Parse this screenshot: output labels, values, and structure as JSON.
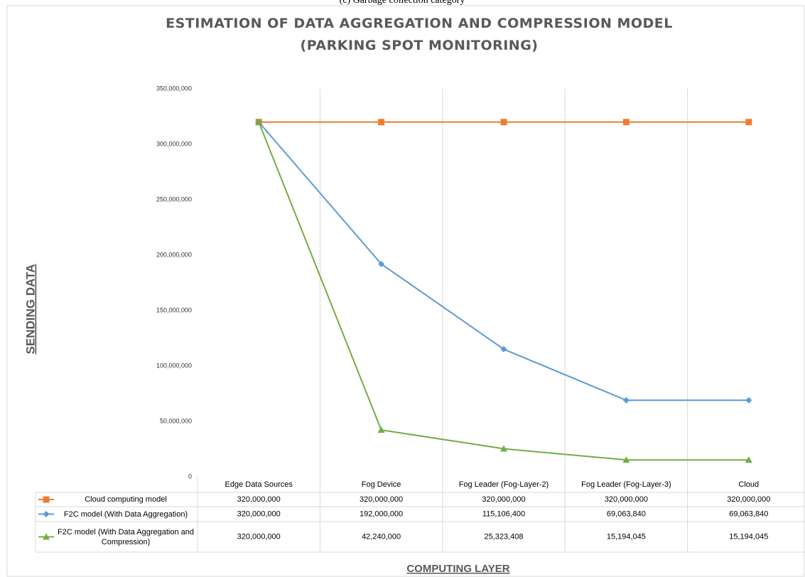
{
  "caption": "(c) Garbage collection category",
  "chart_data": {
    "type": "line",
    "title": "ESTIMATION OF DATA AGGREGATION AND COMPRESSION MODEL (PARKING SPOT MONITORING)",
    "x_label": "COMPUTING LAYER",
    "y_label": "SENDING DATA",
    "categories": [
      "Edge Data Sources",
      "Fog Device",
      "Fog Leader (Fog-Layer-2)",
      "Fog Leader (Fog-Layer-3)",
      "Cloud"
    ],
    "series": [
      {
        "name": "Cloud computing model",
        "color": "#ed7d31",
        "marker": "square",
        "values": [
          320000000,
          320000000,
          320000000,
          320000000,
          320000000
        ],
        "value_labels": [
          "320,000,000",
          "320,000,000",
          "320,000,000",
          "320,000,000",
          "320,000,000"
        ]
      },
      {
        "name": "F2C model (With Data Aggregation)",
        "color": "#5b9bd5",
        "marker": "diamond",
        "values": [
          320000000,
          192000000,
          115106400,
          69063840,
          69063840
        ],
        "value_labels": [
          "320,000,000",
          "192,000,000",
          "115,106,400",
          "69,063,840",
          "69,063,840"
        ]
      },
      {
        "name": "F2C model (With Data Aggregation and Compression)",
        "color": "#70ad47",
        "marker": "triangle",
        "values": [
          320000000,
          42240000,
          25323408,
          15194045,
          15194045
        ],
        "value_labels": [
          "320,000,000",
          "42,240,000",
          "25,323,408",
          "15,194,045",
          "15,194,045"
        ]
      }
    ],
    "ylim": [
      0,
      350000000
    ],
    "yticks": [
      0,
      {
        "value": 50000000,
        "label": "50,000,000"
      },
      {
        "value": 100000000,
        "label": "100,000,000"
      },
      {
        "value": 150000000,
        "label": "150,000,000"
      },
      {
        "value": 200000000,
        "label": "200,000,000"
      },
      {
        "value": 250000000,
        "label": "250,000,000"
      },
      {
        "value": 300000000,
        "label": "300,000,000"
      },
      {
        "value": 350000000,
        "label": "350,000,000"
      }
    ]
  }
}
